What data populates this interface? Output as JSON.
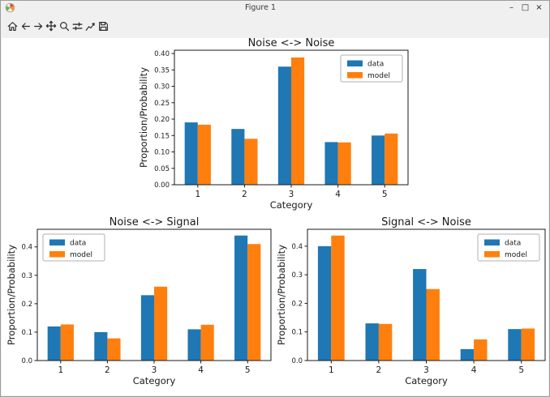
{
  "window": {
    "title": "Figure 1",
    "controls": {
      "minimize": "–",
      "maximize": "□",
      "close": "×"
    }
  },
  "toolbar": {
    "buttons": [
      {
        "name": "home",
        "icon": "home-icon"
      },
      {
        "name": "back",
        "icon": "arrow-left-icon"
      },
      {
        "name": "forward",
        "icon": "arrow-right-icon"
      },
      {
        "name": "pan",
        "icon": "move-cross-icon"
      },
      {
        "name": "zoom",
        "icon": "magnifier-icon"
      },
      {
        "name": "configure-subplots",
        "icon": "sliders-icon"
      },
      {
        "name": "edit-parameters",
        "icon": "line-graph-icon"
      },
      {
        "name": "save",
        "icon": "floppy-disk-icon"
      }
    ]
  },
  "chart_data": [
    {
      "type": "bar",
      "title": "Noise <-> Noise",
      "categories": [
        "1",
        "2",
        "3",
        "4",
        "5"
      ],
      "series": [
        {
          "name": "data",
          "color": "#1f77b4",
          "values": [
            0.19,
            0.17,
            0.36,
            0.13,
            0.15
          ]
        },
        {
          "name": "model",
          "color": "#ff7f0e",
          "values": [
            0.183,
            0.14,
            0.388,
            0.129,
            0.156
          ]
        }
      ],
      "xlabel": "Category",
      "ylabel": "Proportion/Probability",
      "ylim": [
        0,
        0.41
      ],
      "yticks": [
        "0.00",
        "0.05",
        "0.10",
        "0.15",
        "0.20",
        "0.25",
        "0.30",
        "0.35",
        "0.40"
      ],
      "grid": false,
      "legend": "upper right"
    },
    {
      "type": "bar",
      "title": "Noise <-> Signal",
      "categories": [
        "1",
        "2",
        "3",
        "4",
        "5"
      ],
      "series": [
        {
          "name": "data",
          "color": "#1f77b4",
          "values": [
            0.12,
            0.1,
            0.23,
            0.11,
            0.44
          ]
        },
        {
          "name": "model",
          "color": "#ff7f0e",
          "values": [
            0.127,
            0.078,
            0.26,
            0.126,
            0.41
          ]
        }
      ],
      "xlabel": "Category",
      "ylabel": "Proportion/Probability",
      "ylim": [
        0,
        0.462
      ],
      "yticks": [
        "0.0",
        "0.1",
        "0.2",
        "0.3",
        "0.4"
      ],
      "grid": false,
      "legend": "upper left"
    },
    {
      "type": "bar",
      "title": "Signal <-> Noise",
      "categories": [
        "1",
        "2",
        "3",
        "4",
        "5"
      ],
      "series": [
        {
          "name": "data",
          "color": "#1f77b4",
          "values": [
            0.4,
            0.13,
            0.32,
            0.04,
            0.11
          ]
        },
        {
          "name": "model",
          "color": "#ff7f0e",
          "values": [
            0.437,
            0.128,
            0.25,
            0.074,
            0.112
          ]
        }
      ],
      "xlabel": "Category",
      "ylabel": "Proportion/Probability",
      "ylim": [
        0,
        0.459
      ],
      "yticks": [
        "0.0",
        "0.1",
        "0.2",
        "0.3",
        "0.4"
      ],
      "grid": false,
      "legend": "upper right"
    }
  ]
}
